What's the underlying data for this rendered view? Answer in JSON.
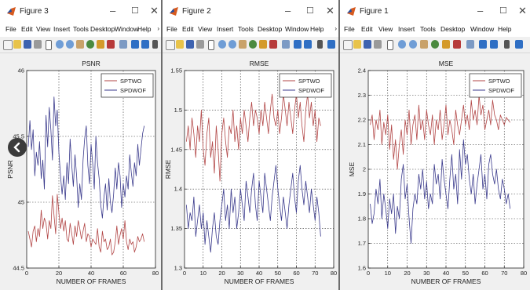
{
  "windows": [
    {
      "title": "Figure 3",
      "menu": [
        "File",
        "Edit",
        "View",
        "Insert",
        "Tools",
        "Desktop",
        "Window",
        "Help"
      ],
      "plot": {
        "title": "PSNR",
        "ylabel": "PSNR",
        "xlabel": "NUMBER OF FRAMES",
        "yticks": [
          "44.5",
          "45",
          "45.5",
          "46"
        ],
        "xticks": [
          "0",
          "20",
          "40",
          "60",
          "80"
        ],
        "legend": [
          "SPTWO",
          "SPDWOF"
        ]
      }
    },
    {
      "title": "Figure 2",
      "menu": [
        "File",
        "Edit",
        "View",
        "Insert",
        "Tools",
        "Desktop",
        "Window",
        "Help"
      ],
      "plot": {
        "title": "RMSE",
        "ylabel": "RMSE",
        "xlabel": "NUMBER OF FRAMES",
        "yticks": [
          "1.3",
          "1.35",
          "1.4",
          "1.45",
          "1.5",
          "1.55"
        ],
        "xticks": [
          "0",
          "10",
          "20",
          "30",
          "40",
          "50",
          "60",
          "70",
          "80"
        ],
        "legend": [
          "SPTWO",
          "SPDWOF"
        ]
      }
    },
    {
      "title": "Figure 1",
      "menu": [
        "File",
        "Edit",
        "View",
        "Insert",
        "Tools",
        "Desktop",
        "Window",
        "Help"
      ],
      "plot": {
        "title": "MSE",
        "ylabel": "MSE",
        "xlabel": "NUMBER OF FRAMES",
        "yticks": [
          "1.6",
          "1.7",
          "1.8",
          "1.9",
          "2",
          "2.1",
          "2.2",
          "2.3",
          "2.4"
        ],
        "xticks": [
          "0",
          "10",
          "20",
          "30",
          "40",
          "50",
          "60",
          "70",
          "80"
        ],
        "legend": [
          "SPTWO",
          "SPDWOF"
        ]
      }
    }
  ],
  "window_controls": [
    "–",
    "☐",
    "✕"
  ],
  "nav_button_icon": "chevron-left-icon",
  "colors": {
    "sptwo": "#b24646",
    "spdwof": "#3a3a8c",
    "accent": "#2a5db0"
  },
  "chart_data": [
    {
      "type": "line",
      "title": "PSNR",
      "xlabel": "NUMBER OF FRAMES",
      "ylabel": "PSNR",
      "xlim": [
        0,
        80
      ],
      "ylim": [
        44.5,
        46
      ],
      "grid": true,
      "legend_placement": "top-right",
      "x_start": 1,
      "series": [
        {
          "name": "SPTWO",
          "values": [
            44.78,
            44.72,
            44.66,
            44.78,
            44.82,
            44.7,
            44.8,
            44.74,
            44.94,
            44.8,
            44.88,
            44.84,
            44.72,
            44.86,
            44.8,
            45.05,
            44.9,
            44.76,
            45.06,
            44.92,
            44.8,
            44.88,
            44.78,
            44.86,
            44.72,
            44.7,
            44.84,
            44.76,
            44.68,
            44.82,
            44.74,
            44.86,
            44.8,
            44.72,
            44.78,
            44.84,
            44.7,
            44.76,
            44.74,
            44.66,
            44.72,
            44.7,
            44.68,
            44.8,
            44.66,
            44.62,
            44.78,
            44.7,
            44.72,
            44.64,
            44.66,
            44.72,
            44.6,
            44.62,
            44.7,
            44.82,
            44.68,
            44.75,
            44.8,
            44.72,
            44.86,
            44.7,
            44.64,
            44.72,
            44.68,
            44.7,
            44.62,
            44.66,
            44.74,
            44.7,
            44.72,
            44.76,
            44.7
          ]
        },
        {
          "name": "SPDWOF",
          "values": [
            45.42,
            45.62,
            45.4,
            45.55,
            45.2,
            45.38,
            45.28,
            45.46,
            45.18,
            45.32,
            45.1,
            45.66,
            45.42,
            45.72,
            45.55,
            45.32,
            45.8,
            45.58,
            45.7,
            45.38,
            45.2,
            45.06,
            45.2,
            45.02,
            45.3,
            45.14,
            45.48,
            45.28,
            45.12,
            45.36,
            45.2,
            44.96,
            45.14,
            45.02,
            45.32,
            45.48,
            45.58,
            45.28,
            45.14,
            45.44,
            45.3,
            45.1,
            45.5,
            45.3,
            45.18,
            44.98,
            44.88,
            45.04,
            45.14,
            44.94,
            45.18,
            45.0,
            44.92,
            45.06,
            45.26,
            45.1,
            45.3,
            45.2,
            44.96,
            45.14,
            45.04,
            45.2,
            45.1,
            45.36,
            45.22,
            45.12,
            45.3,
            45.2,
            45.44,
            45.28,
            45.4,
            45.52,
            45.58
          ]
        }
      ]
    },
    {
      "type": "line",
      "title": "RMSE",
      "xlabel": "NUMBER OF FRAMES",
      "ylabel": "RMSE",
      "xlim": [
        0,
        80
      ],
      "ylim": [
        1.3,
        1.55
      ],
      "grid": true,
      "legend_placement": "top-right",
      "x_start": 1,
      "series": [
        {
          "name": "SPTWO",
          "values": [
            1.46,
            1.48,
            1.45,
            1.49,
            1.47,
            1.44,
            1.48,
            1.46,
            1.5,
            1.45,
            1.43,
            1.47,
            1.49,
            1.44,
            1.46,
            1.42,
            1.48,
            1.45,
            1.41,
            1.47,
            1.49,
            1.46,
            1.44,
            1.48,
            1.47,
            1.5,
            1.46,
            1.48,
            1.45,
            1.49,
            1.47,
            1.5,
            1.48,
            1.46,
            1.49,
            1.51,
            1.48,
            1.5,
            1.49,
            1.47,
            1.5,
            1.48,
            1.51,
            1.49,
            1.47,
            1.5,
            1.52,
            1.49,
            1.48,
            1.5,
            1.47,
            1.49,
            1.52,
            1.5,
            1.48,
            1.51,
            1.49,
            1.47,
            1.5,
            1.52,
            1.49,
            1.51,
            1.48,
            1.46,
            1.5,
            1.52,
            1.49,
            1.51,
            1.48,
            1.5,
            1.46,
            1.49,
            1.48
          ]
        },
        {
          "name": "SPDWOF",
          "values": [
            1.38,
            1.35,
            1.37,
            1.36,
            1.39,
            1.34,
            1.36,
            1.38,
            1.35,
            1.37,
            1.33,
            1.36,
            1.34,
            1.32,
            1.35,
            1.37,
            1.34,
            1.33,
            1.36,
            1.38,
            1.4,
            1.36,
            1.38,
            1.35,
            1.4,
            1.37,
            1.39,
            1.35,
            1.37,
            1.4,
            1.38,
            1.36,
            1.41,
            1.39,
            1.37,
            1.4,
            1.42,
            1.38,
            1.36,
            1.41,
            1.39,
            1.37,
            1.42,
            1.4,
            1.38,
            1.36,
            1.39,
            1.41,
            1.43,
            1.4,
            1.38,
            1.36,
            1.39,
            1.37,
            1.35,
            1.38,
            1.4,
            1.42,
            1.39,
            1.37,
            1.41,
            1.43,
            1.4,
            1.38,
            1.41,
            1.39,
            1.37,
            1.4,
            1.38,
            1.36,
            1.39,
            1.37,
            1.34
          ]
        }
      ]
    },
    {
      "type": "line",
      "title": "MSE",
      "xlabel": "NUMBER OF FRAMES",
      "ylabel": "MSE",
      "xlim": [
        0,
        80
      ],
      "ylim": [
        1.6,
        2.4
      ],
      "grid": true,
      "legend_placement": "top-right",
      "x_start": 1,
      "series": [
        {
          "name": "SPTWO",
          "values": [
            2.18,
            2.22,
            2.12,
            2.2,
            2.16,
            2.24,
            2.1,
            2.19,
            2.14,
            2.22,
            2.08,
            2.18,
            2.04,
            2.12,
            2.0,
            2.1,
            2.16,
            2.06,
            2.2,
            2.14,
            2.24,
            2.1,
            2.18,
            2.22,
            2.12,
            2.26,
            2.16,
            2.2,
            2.12,
            2.24,
            2.18,
            2.14,
            2.22,
            2.1,
            2.2,
            2.16,
            2.24,
            2.12,
            2.18,
            2.26,
            2.14,
            2.2,
            2.16,
            2.1,
            2.24,
            2.18,
            2.14,
            2.2,
            2.26,
            2.18,
            2.22,
            2.16,
            2.28,
            2.2,
            2.24,
            2.18,
            2.3,
            2.22,
            2.26,
            2.16,
            2.2,
            2.24,
            2.18,
            2.28,
            2.22,
            2.2,
            2.16,
            2.22,
            2.2,
            2.18,
            2.21,
            2.2,
            2.19
          ]
        },
        {
          "name": "SPDWOF",
          "values": [
            1.86,
            1.78,
            1.82,
            1.92,
            1.86,
            1.96,
            1.8,
            1.9,
            1.84,
            1.76,
            1.88,
            1.82,
            1.9,
            1.74,
            1.85,
            1.8,
            1.96,
            2.02,
            1.88,
            1.94,
            1.8,
            1.7,
            1.84,
            1.9,
            1.86,
            1.98,
            1.92,
            2.0,
            1.88,
            1.95,
            1.84,
            1.9,
            1.86,
            2.02,
            1.94,
            1.98,
            1.88,
            2.04,
            1.96,
            1.9,
            1.84,
            1.96,
            2.06,
            1.92,
            1.98,
            1.86,
            2.08,
            1.96,
            2.12,
            2.02,
            2.06,
            1.96,
            1.9,
            1.98,
            1.86,
            1.94,
            2.0,
            2.06,
            1.92,
            1.98,
            1.88,
            2.02,
            2.06,
            1.98,
            1.94,
            2.0,
            1.92,
            1.88,
            1.96,
            1.92,
            1.86,
            1.9,
            1.84
          ]
        }
      ]
    }
  ]
}
